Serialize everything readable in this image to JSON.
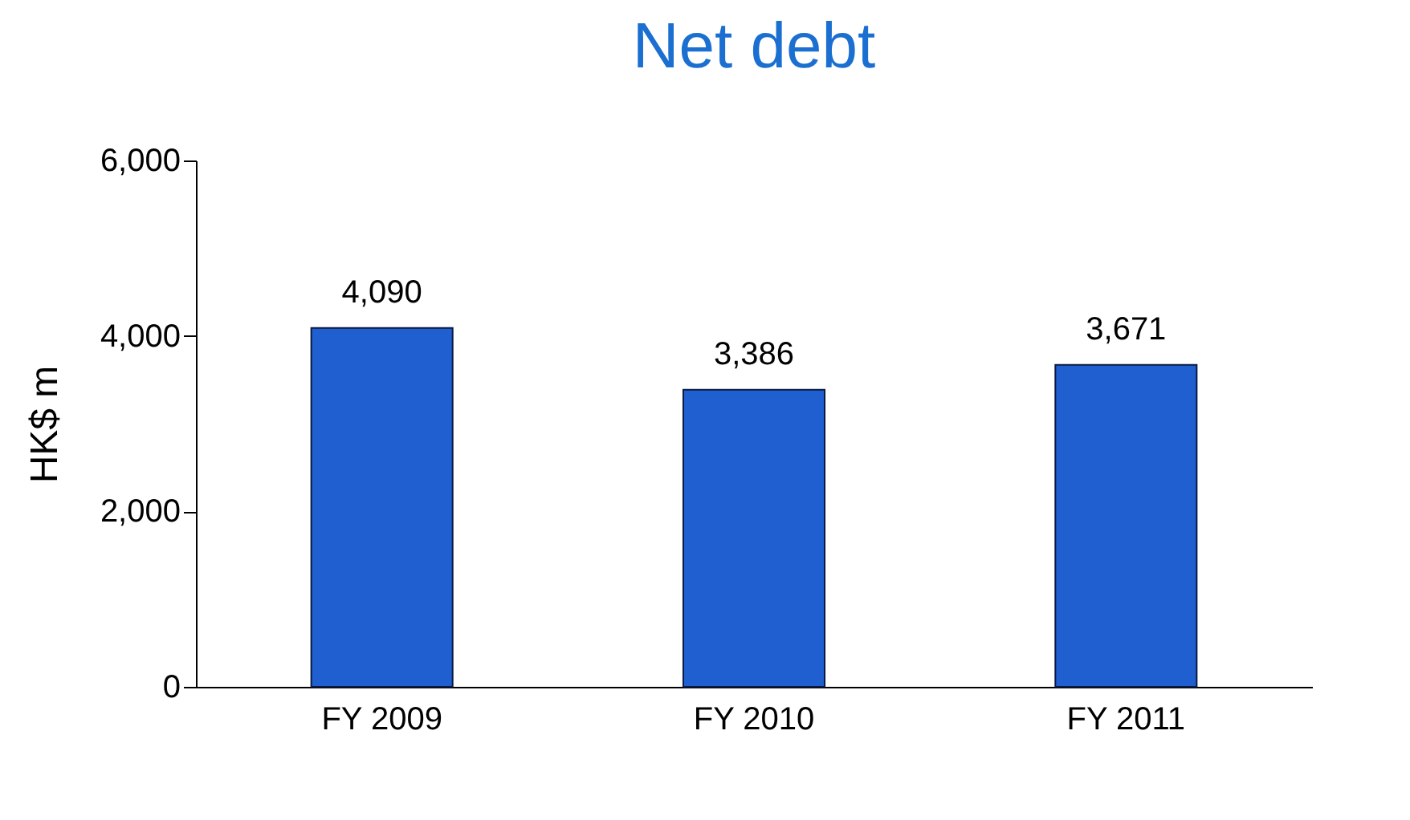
{
  "chart_data": {
    "type": "bar",
    "title": "Net debt",
    "ylabel": "HK$ m",
    "categories": [
      "FY 2009",
      "FY 2010",
      "FY 2011"
    ],
    "values": [
      4090,
      3386,
      3671
    ],
    "value_labels": [
      "4,090",
      "3,386",
      "3,671"
    ],
    "color": "#1f5fd0",
    "ylim": [
      0,
      6000
    ],
    "yticks": [
      0,
      {
        "value": 2000,
        "label": "2,000"
      },
      {
        "value": 4000,
        "label": "4,000"
      },
      {
        "value": 6000,
        "label": "6,000"
      }
    ],
    "grid": false
  }
}
